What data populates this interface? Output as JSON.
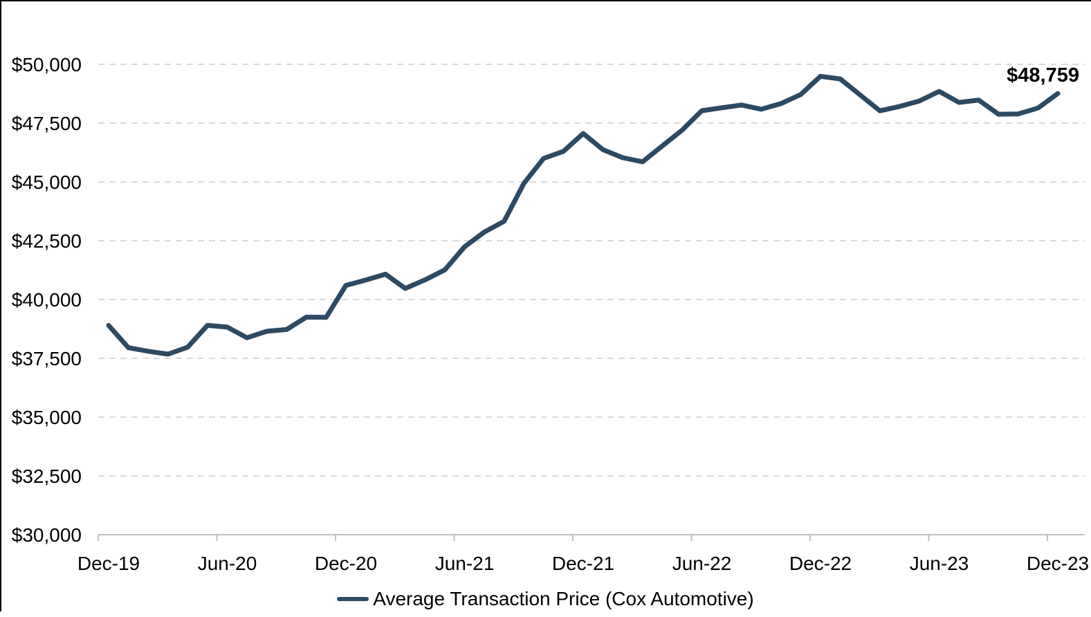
{
  "chart_data": {
    "type": "line",
    "title": "",
    "categories": [
      "Dec-19",
      "Jan-20",
      "Feb-20",
      "Mar-20",
      "Apr-20",
      "May-20",
      "Jun-20",
      "Jul-20",
      "Aug-20",
      "Sep-20",
      "Oct-20",
      "Nov-20",
      "Dec-20",
      "Jan-21",
      "Feb-21",
      "Mar-21",
      "Apr-21",
      "May-21",
      "Jun-21",
      "Jul-21",
      "Aug-21",
      "Sep-21",
      "Oct-21",
      "Nov-21",
      "Dec-21",
      "Jan-22",
      "Feb-22",
      "Mar-22",
      "Apr-22",
      "May-22",
      "Jun-22",
      "Jul-22",
      "Aug-22",
      "Sep-22",
      "Oct-22",
      "Nov-22",
      "Dec-22",
      "Jan-23",
      "Feb-23",
      "Mar-23",
      "Apr-23",
      "May-23",
      "Jun-23",
      "Jul-23",
      "Aug-23",
      "Sep-23",
      "Oct-23",
      "Nov-23",
      "Dec-23"
    ],
    "series": [
      {
        "name": "Average Transaction Price (Cox Automotive)",
        "values": [
          38900,
          37950,
          37800,
          37675,
          37975,
          38900,
          38825,
          38375,
          38650,
          38725,
          39250,
          39240,
          40600,
          40825,
          41075,
          40470,
          40835,
          41260,
          42240,
          42870,
          43325,
          44940,
          46000,
          46300,
          47060,
          46370,
          46030,
          45855,
          46530,
          47200,
          48030,
          48150,
          48270,
          48090,
          48330,
          48715,
          49490,
          49380,
          48700,
          48025,
          48210,
          48440,
          48850,
          48380,
          48480,
          47880,
          47890,
          48140,
          48759
        ]
      }
    ],
    "x_tick_labels": [
      "Dec-19",
      "Jun-20",
      "Dec-20",
      "Jun-21",
      "Dec-21",
      "Jun-22",
      "Dec-22",
      "Jun-23",
      "Dec-23"
    ],
    "y_tick_labels": [
      "$30,000",
      "$32,500",
      "$35,000",
      "$37,500",
      "$40,000",
      "$42,500",
      "$45,000",
      "$47,500",
      "$50,000"
    ],
    "ylim": [
      30000,
      50000
    ],
    "y_step": 2500,
    "grid": "horizontal-dashed",
    "legend_position": "bottom-center",
    "annotation": {
      "text": "$48,759"
    },
    "colors": {
      "line": "#2c4a63",
      "gridline": "#d9d9d9",
      "axis": "#bfbfbf",
      "text": "#000000",
      "annotation": "#000000"
    }
  }
}
